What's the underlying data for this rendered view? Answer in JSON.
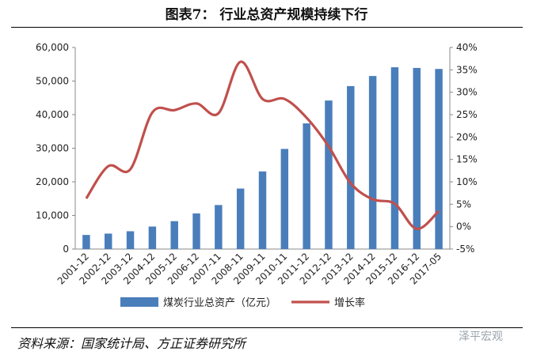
{
  "title": "图表7：  行业总资产规模持续下行",
  "source": "资料来源：国家统计局、方正证券研究所",
  "watermark": "泽平宏观",
  "chart_data": {
    "type": "bar+line",
    "categories": [
      "2001-12",
      "2002-12",
      "2003-12",
      "2004-12",
      "2005-12",
      "2006-12",
      "2007-11",
      "2008-11",
      "2009-11",
      "2010-11",
      "2011-12",
      "2012-12",
      "2013-12",
      "2014-12",
      "2015-12",
      "2016-12",
      "2017-05"
    ],
    "series": [
      {
        "name": "煤炭行业总资产（亿元）",
        "type": "bar",
        "axis": "left",
        "color": "#4a7ebb",
        "values": [
          4200,
          4600,
          5300,
          6700,
          8300,
          10600,
          13100,
          18000,
          23100,
          29800,
          37400,
          44200,
          48500,
          51500,
          54100,
          53900,
          53600
        ]
      },
      {
        "name": "增长率",
        "type": "line",
        "axis": "right",
        "color": "#c0504d",
        "values": [
          6.3,
          13.5,
          12.8,
          25.5,
          26.0,
          27.5,
          25.3,
          36.8,
          28.5,
          28.5,
          24.3,
          17.9,
          9.7,
          6.1,
          5.1,
          -0.5,
          3.5
        ]
      }
    ],
    "y_left": {
      "min": 0,
      "max": 60000,
      "ticks": [
        "0",
        "10,000",
        "20,000",
        "30,000",
        "40,000",
        "50,000",
        "60,000"
      ]
    },
    "y_right": {
      "min": -5,
      "max": 40,
      "ticks": [
        "-5%",
        "0%",
        "5%",
        "10%",
        "15%",
        "20%",
        "25%",
        "30%",
        "35%",
        "40%"
      ]
    },
    "grid": false,
    "legend_position": "bottom"
  }
}
